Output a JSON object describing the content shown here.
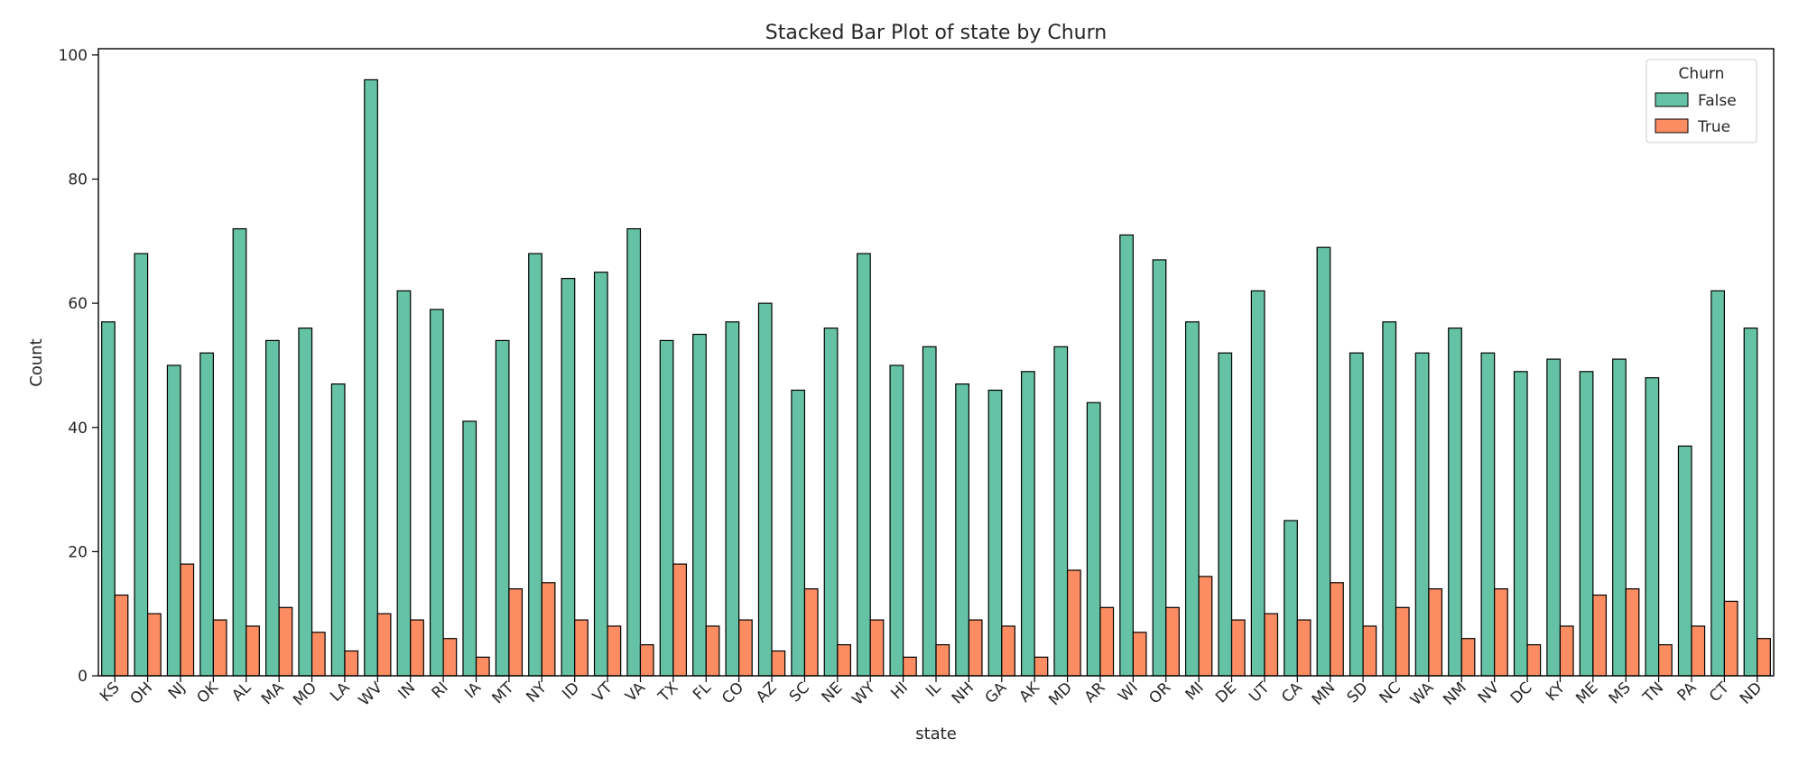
{
  "chart_data": {
    "type": "bar",
    "title": "Stacked Bar Plot of state by Churn",
    "xlabel": "state",
    "ylabel": "Count",
    "ylim": [
      0,
      101
    ],
    "yticks": [
      0,
      20,
      40,
      60,
      80,
      100
    ],
    "grid": false,
    "legend": {
      "title": "Churn",
      "placement": "top-right"
    },
    "categories": [
      "KS",
      "OH",
      "NJ",
      "OK",
      "AL",
      "MA",
      "MO",
      "LA",
      "WV",
      "IN",
      "RI",
      "IA",
      "MT",
      "NY",
      "ID",
      "VT",
      "VA",
      "TX",
      "FL",
      "CO",
      "AZ",
      "SC",
      "NE",
      "WY",
      "HI",
      "IL",
      "NH",
      "GA",
      "AK",
      "MD",
      "AR",
      "WI",
      "OR",
      "MI",
      "DE",
      "UT",
      "CA",
      "MN",
      "SD",
      "NC",
      "WA",
      "NM",
      "NV",
      "DC",
      "KY",
      "ME",
      "MS",
      "TN",
      "PA",
      "CT",
      "ND"
    ],
    "series": [
      {
        "name": "False",
        "color": "#66c2a5",
        "values": [
          57,
          68,
          50,
          52,
          72,
          54,
          56,
          47,
          96,
          62,
          59,
          41,
          54,
          68,
          64,
          65,
          72,
          54,
          55,
          57,
          60,
          46,
          56,
          68,
          50,
          53,
          47,
          46,
          49,
          53,
          44,
          71,
          67,
          57,
          52,
          62,
          25,
          69,
          52,
          57,
          52,
          56,
          52,
          49,
          51,
          49,
          51,
          48,
          37,
          62,
          56
        ]
      },
      {
        "name": "True",
        "color": "#fc8d62",
        "values": [
          13,
          10,
          18,
          9,
          8,
          11,
          7,
          4,
          10,
          9,
          6,
          3,
          14,
          15,
          9,
          8,
          5,
          18,
          8,
          9,
          4,
          14,
          5,
          9,
          3,
          5,
          9,
          8,
          3,
          17,
          11,
          7,
          11,
          16,
          9,
          10,
          9,
          15,
          8,
          11,
          14,
          6,
          14,
          5,
          8,
          13,
          14,
          5,
          8,
          12,
          6
        ]
      }
    ]
  }
}
